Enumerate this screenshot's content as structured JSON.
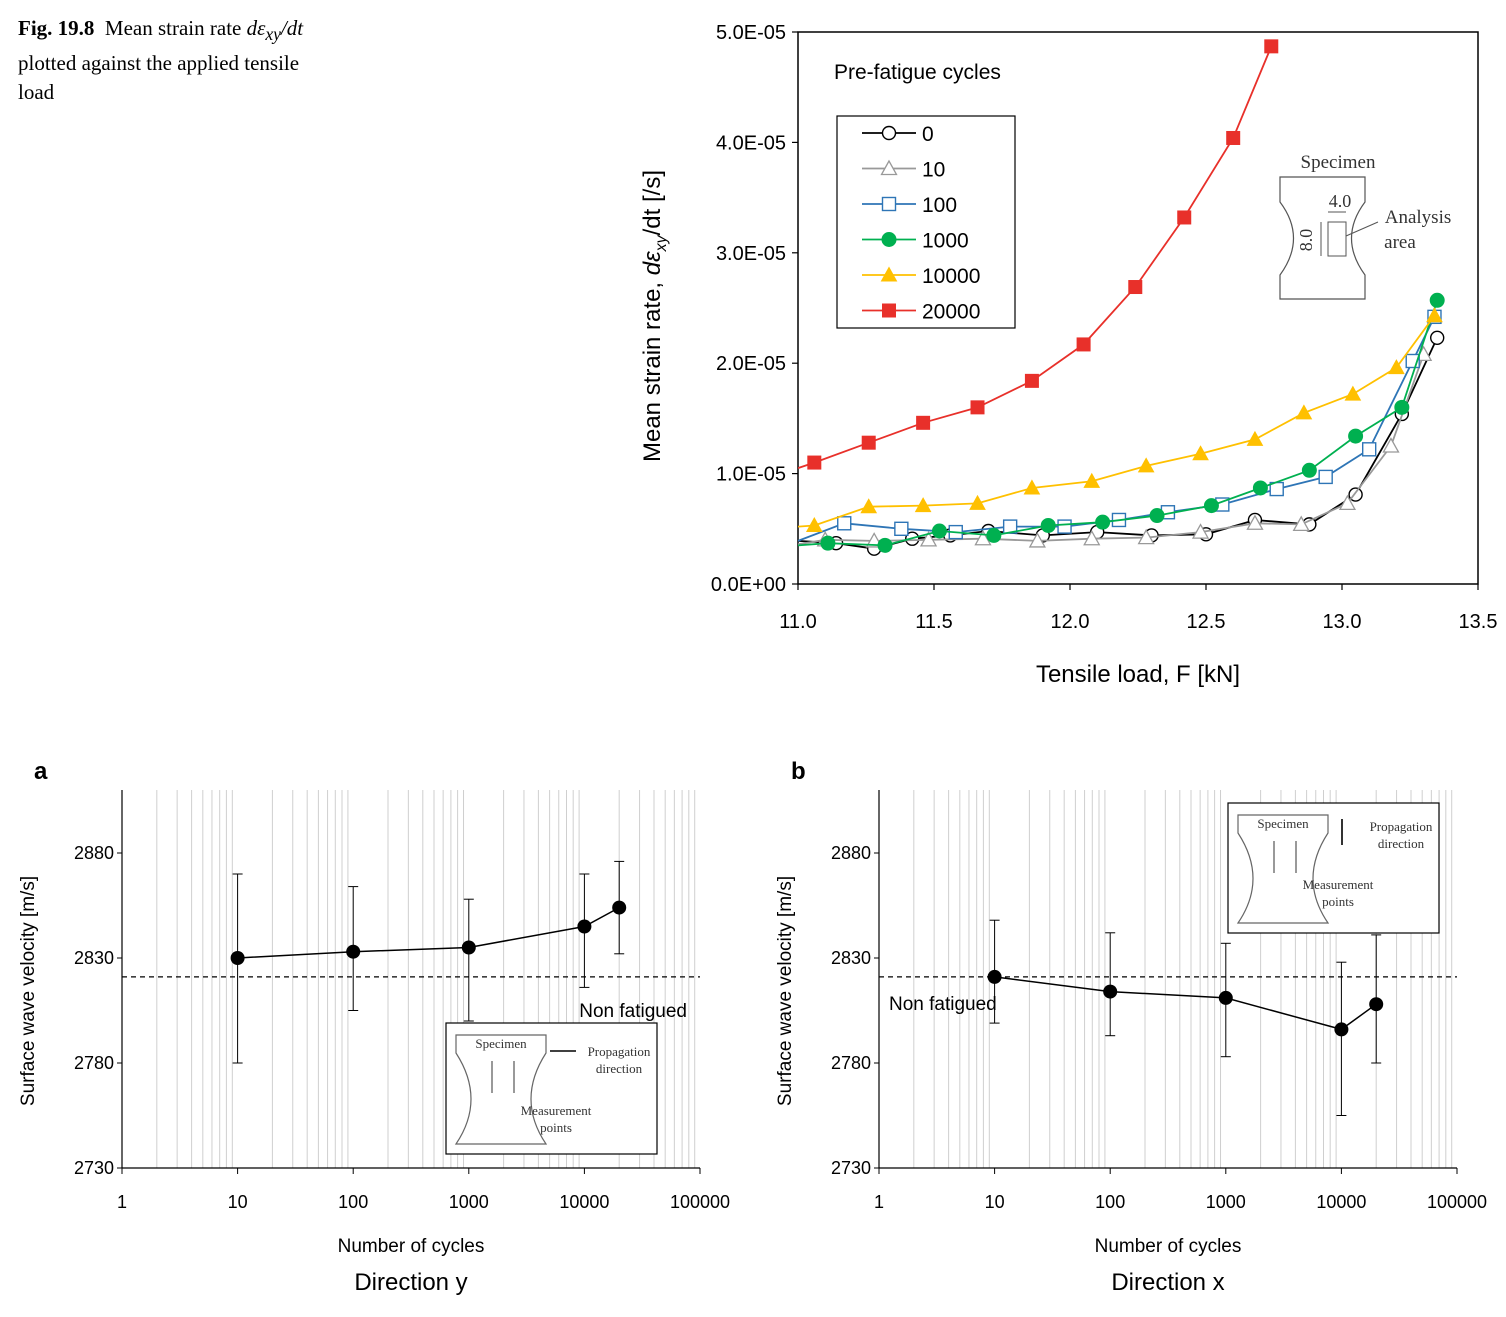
{
  "caption": {
    "fig_number": "Fig. 19.8",
    "text_part1": "Mean strain rate ",
    "text_symbol": "dε",
    "text_subscript": "xy",
    "text_symbol_tail": "/dt",
    "text_part2": " plotted against the applied tensile load"
  },
  "chart_data": [
    {
      "id": "top",
      "type": "line",
      "xlabel": "Tensile load, F [kN]",
      "ylabel_prefix": "Mean strain rate, ",
      "ylabel_symbol": "dε",
      "ylabel_sub": "xy",
      "ylabel_suffix": "/dt [/s]",
      "xlim": [
        11.0,
        13.5
      ],
      "ylim": [
        0,
        5e-05
      ],
      "xticks": [
        "11.0",
        "11.5",
        "12.0",
        "12.5",
        "13.0",
        "13.5"
      ],
      "xtick_values": [
        11.0,
        11.5,
        12.0,
        12.5,
        13.0,
        13.5
      ],
      "yticks": [
        "0.0E+00",
        "1.0E-05",
        "2.0E-05",
        "3.0E-05",
        "4.0E-05",
        "5.0E-05"
      ],
      "ytick_values": [
        0,
        1e-05,
        2e-05,
        3e-05,
        4e-05,
        5e-05
      ],
      "legend_title": "Pre-fatigue cycles",
      "legend_placement": "top-left",
      "grid": false,
      "inset": {
        "title": "Specimen",
        "width_label": "4.0",
        "height_label": "8.0",
        "area_label_1": "Analysis",
        "area_label_2": "area"
      },
      "series": [
        {
          "name": "0",
          "color": "#000000",
          "marker": "circle-open",
          "x": [
            11.0,
            11.14,
            11.28,
            11.42,
            11.56,
            11.7,
            11.9,
            12.1,
            12.3,
            12.5,
            12.68,
            12.88,
            13.05,
            13.22,
            13.35
          ],
          "y": [
            3.9e-06,
            3.7e-06,
            3.2e-06,
            4.1e-06,
            4.4e-06,
            4.8e-06,
            4.4e-06,
            4.7e-06,
            4.4e-06,
            4.5e-06,
            5.8e-06,
            5.4e-06,
            8.1e-06,
            1.54e-05,
            2.23e-05
          ]
        },
        {
          "name": "10",
          "color": "#999999",
          "marker": "triangle-open",
          "x": [
            11.0,
            11.1,
            11.28,
            11.48,
            11.68,
            11.88,
            12.08,
            12.28,
            12.48,
            12.68,
            12.85,
            13.02,
            13.18,
            13.3
          ],
          "y": [
            3.6e-06,
            4e-06,
            3.9e-06,
            4e-06,
            4.1e-06,
            3.9e-06,
            4.1e-06,
            4.2e-06,
            4.7e-06,
            5.5e-06,
            5.4e-06,
            7.3e-06,
            1.25e-05,
            2.08e-05
          ]
        },
        {
          "name": "100",
          "color": "#2e75b6",
          "marker": "square-open",
          "x": [
            11.0,
            11.17,
            11.38,
            11.58,
            11.78,
            11.98,
            12.18,
            12.36,
            12.56,
            12.76,
            12.94,
            13.1,
            13.26,
            13.34
          ],
          "y": [
            3.9e-06,
            5.5e-06,
            5e-06,
            4.7e-06,
            5.2e-06,
            5.2e-06,
            5.8e-06,
            6.5e-06,
            7.2e-06,
            8.6e-06,
            9.7e-06,
            1.22e-05,
            2.02e-05,
            2.42e-05
          ]
        },
        {
          "name": "1000",
          "color": "#00b050",
          "marker": "circle-filled",
          "x": [
            11.0,
            11.11,
            11.32,
            11.52,
            11.72,
            11.92,
            12.12,
            12.32,
            12.52,
            12.7,
            12.88,
            13.05,
            13.22,
            13.35
          ],
          "y": [
            3.5e-06,
            3.7e-06,
            3.5e-06,
            4.8e-06,
            4.4e-06,
            5.3e-06,
            5.6e-06,
            6.2e-06,
            7.1e-06,
            8.7e-06,
            1.03e-05,
            1.34e-05,
            1.6e-05,
            2.57e-05
          ]
        },
        {
          "name": "10000",
          "color": "#ffc000",
          "marker": "triangle-filled",
          "x": [
            11.0,
            11.06,
            11.26,
            11.46,
            11.66,
            11.86,
            12.08,
            12.28,
            12.48,
            12.68,
            12.86,
            13.04,
            13.2,
            13.34
          ],
          "y": [
            5.2e-06,
            5.3e-06,
            7e-06,
            7.1e-06,
            7.3e-06,
            8.7e-06,
            9.3e-06,
            1.07e-05,
            1.18e-05,
            1.31e-05,
            1.55e-05,
            1.72e-05,
            1.96e-05,
            2.43e-05
          ]
        },
        {
          "name": "20000",
          "color": "#e8302a",
          "marker": "square-filled",
          "x": [
            11.0,
            11.06,
            11.26,
            11.46,
            11.66,
            11.86,
            12.05,
            12.24,
            12.42,
            12.6,
            12.74
          ],
          "y": [
            1.05e-05,
            1.1e-05,
            1.28e-05,
            1.46e-05,
            1.6e-05,
            1.84e-05,
            2.17e-05,
            2.69e-05,
            3.32e-05,
            4.04e-05,
            4.87e-05
          ]
        }
      ]
    },
    {
      "id": "a",
      "type": "scatter",
      "panel_label": "a",
      "subtitle": "Direction y",
      "xlabel": "Number of cycles",
      "ylabel": "Surface wave velocity [m/s]",
      "xscale": "log",
      "xlim": [
        1,
        100000
      ],
      "ylim": [
        2730,
        2910
      ],
      "xticks": [
        "1",
        "10",
        "100",
        "1000",
        "10000",
        "100000"
      ],
      "yticks": [
        "2730",
        "2780",
        "2830",
        "2880"
      ],
      "ytick_values": [
        2730,
        2780,
        2830,
        2880
      ],
      "grid": "vertical minor",
      "reference_line": {
        "label": "Non fatigued",
        "y": 2821
      },
      "inset": {
        "title": "Specimen",
        "arrow_label_1": "Propagation",
        "arrow_label_2": "direction",
        "points_label_1": "Measurement",
        "points_label_2": "points"
      },
      "points": [
        {
          "x": 10,
          "y": 2830,
          "err_low": 2780,
          "err_high": 2870
        },
        {
          "x": 100,
          "y": 2833,
          "err_low": 2805,
          "err_high": 2864
        },
        {
          "x": 1000,
          "y": 2835,
          "err_low": 2800,
          "err_high": 2858
        },
        {
          "x": 10000,
          "y": 2845,
          "err_low": 2816,
          "err_high": 2870
        },
        {
          "x": 20000,
          "y": 2854,
          "err_low": 2832,
          "err_high": 2876
        }
      ]
    },
    {
      "id": "b",
      "type": "scatter",
      "panel_label": "b",
      "subtitle": "Direction x",
      "xlabel": "Number of cycles",
      "ylabel": "Surface wave velocity [m/s]",
      "xscale": "log",
      "xlim": [
        1,
        100000
      ],
      "ylim": [
        2730,
        2910
      ],
      "xticks": [
        "1",
        "10",
        "100",
        "1000",
        "10000",
        "100000"
      ],
      "yticks": [
        "2730",
        "2780",
        "2830",
        "2880"
      ],
      "ytick_values": [
        2730,
        2780,
        2830,
        2880
      ],
      "grid": "vertical minor",
      "reference_line": {
        "label": "Non fatigued",
        "y": 2821
      },
      "inset": {
        "title": "Specimen",
        "arrow_label_1": "Propagation",
        "arrow_label_2": "direction",
        "points_label_1": "Measurement",
        "points_label_2": "points"
      },
      "points": [
        {
          "x": 10,
          "y": 2821,
          "err_low": 2799,
          "err_high": 2848
        },
        {
          "x": 100,
          "y": 2814,
          "err_low": 2793,
          "err_high": 2842
        },
        {
          "x": 1000,
          "y": 2811,
          "err_low": 2783,
          "err_high": 2837
        },
        {
          "x": 10000,
          "y": 2796,
          "err_low": 2755,
          "err_high": 2828
        },
        {
          "x": 20000,
          "y": 2808,
          "err_low": 2780,
          "err_high": 2841
        }
      ]
    }
  ]
}
